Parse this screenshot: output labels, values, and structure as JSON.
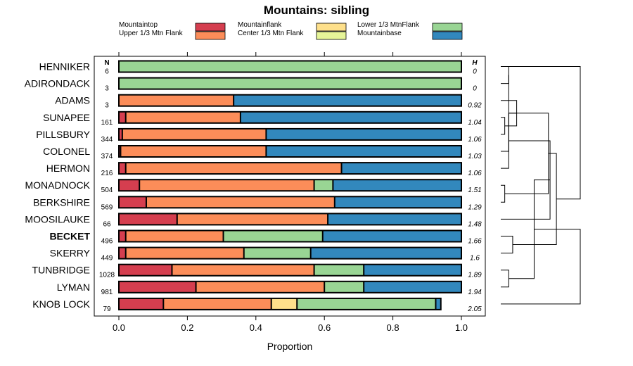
{
  "chart_data": {
    "type": "bar",
    "orientation": "horizontal",
    "stacked": true,
    "title": "Mountains: sibling",
    "xlabel": "Proportion",
    "ylabel": "",
    "xlim": [
      0,
      1
    ],
    "x_ticks": [
      "0.0",
      "0.2",
      "0.4",
      "0.6",
      "0.8",
      "1.0"
    ],
    "column_headers": {
      "n": "N",
      "h": "H"
    },
    "legend": [
      {
        "name": "Mountaintop",
        "color": "#d53e4f"
      },
      {
        "name": "Upper 1/3 Mtn Flank",
        "color": "#fc8d59"
      },
      {
        "name": "Mountainflank",
        "color": "#fee08b"
      },
      {
        "name": "Center 1/3 Mtn Flank",
        "color": "#e6f598"
      },
      {
        "name": "Lower 1/3 MtnFlank",
        "color": "#99d594"
      },
      {
        "name": "Mountainbase",
        "color": "#3288bd"
      }
    ],
    "categories": [
      "HENNIKER",
      "ADIRONDACK",
      "ADAMS",
      "SUNAPEE",
      "PILLSBURY",
      "COLONEL",
      "HERMON",
      "MONADNOCK",
      "BERKSHIRE",
      "MOOSILAUKE",
      "BECKET",
      "SKERRY",
      "TUNBRIDGE",
      "LYMAN",
      "KNOB LOCK"
    ],
    "bold_categories": [
      "BECKET"
    ],
    "n": [
      "6",
      "3",
      "3",
      "161",
      "344",
      "374",
      "216",
      "504",
      "569",
      "66",
      "496",
      "449",
      "1028",
      "981",
      "79"
    ],
    "h": [
      "0",
      "0",
      "0.92",
      "1.04",
      "1.06",
      "1.03",
      "1.06",
      "1.51",
      "1.29",
      "1.48",
      "1.66",
      "1.6",
      "1.89",
      "1.94",
      "2.05"
    ],
    "series": [
      {
        "name": "Mountaintop",
        "values": [
          0,
          0,
          0,
          0.02,
          0.01,
          0.005,
          0.02,
          0.06,
          0.08,
          0.17,
          0.02,
          0.02,
          0.155,
          0.225,
          0.13
        ]
      },
      {
        "name": "Upper 1/3 Mtn Flank",
        "values": [
          0,
          0,
          0.335,
          0.335,
          0.42,
          0.425,
          0.63,
          0.51,
          0.55,
          0.44,
          0.285,
          0.345,
          0.415,
          0.375,
          0.315
        ]
      },
      {
        "name": "Mountainflank",
        "values": [
          0,
          0,
          0,
          0,
          0,
          0,
          0,
          0,
          0,
          0,
          0,
          0,
          0,
          0,
          0.075
        ]
      },
      {
        "name": "Center 1/3 Mtn Flank",
        "values": [
          0,
          0,
          0,
          0,
          0,
          0,
          0,
          0,
          0,
          0,
          0,
          0,
          0,
          0,
          0
        ]
      },
      {
        "name": "Lower 1/3 MtnFlank",
        "values": [
          1,
          1,
          0,
          0,
          0,
          0,
          0,
          0.055,
          0,
          0,
          0.29,
          0.195,
          0.145,
          0.115,
          0.405
        ]
      },
      {
        "name": "Mountainbase",
        "values": [
          0,
          0,
          0.665,
          0.645,
          0.57,
          0.57,
          0.35,
          0.375,
          0.37,
          0.39,
          0.405,
          0.44,
          0.285,
          0.285,
          0.015
        ]
      }
    ],
    "dendrogram": {
      "side": "right",
      "merges": [
        [
          0,
          1,
          0.1
        ],
        [
          3,
          4,
          0.05
        ],
        [
          15,
          5,
          0.1
        ],
        [
          2,
          16,
          0.2
        ],
        [
          7,
          8,
          0.05
        ],
        [
          6,
          18,
          0.1
        ],
        [
          17,
          19,
          0.6
        ],
        [
          20,
          9,
          0.62
        ],
        [
          12,
          13,
          0.1
        ],
        [
          10,
          11,
          0.15
        ],
        [
          22,
          23,
          0.42
        ],
        [
          21,
          24,
          0.7
        ],
        [
          25,
          14,
          1.0
        ],
        [
          26,
          0,
          1.0
        ]
      ]
    }
  }
}
